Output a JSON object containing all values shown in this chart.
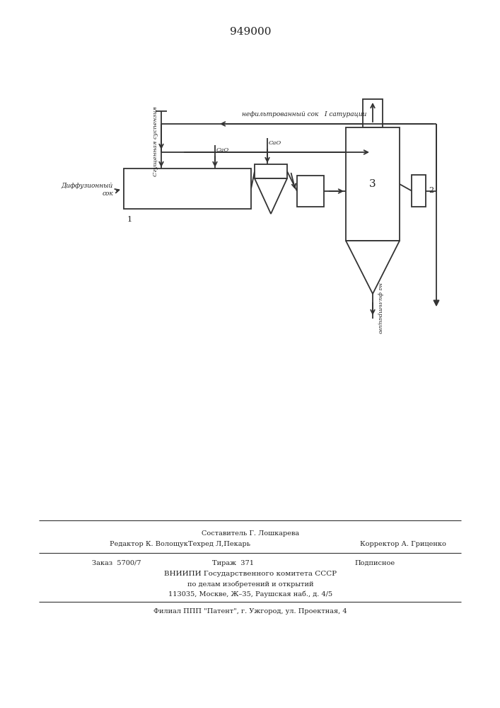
{
  "title": "949000",
  "background_color": "#ffffff",
  "line_color": "#333333",
  "text_color": "#222222",
  "figsize": [
    7.07,
    10.0
  ],
  "dpi": 100,
  "label_diffusion": "Диффузионный\nсок",
  "label_suspension": "Сгущенная суспензия",
  "label_nefiltrovanny": "нефильтрованный сок   I сатурации",
  "label_na_filtratsiyu": "на фильтрацию",
  "label_cao1": "CaO",
  "label_cao2": "CaO",
  "label_num1": "1",
  "label_num2": "2",
  "label_num3": "3",
  "footer_sestavitel": "Составитель Г. Лошкарева",
  "footer_redaktor": "Редактор К. Волощук",
  "footer_tekhred": "Техред Л,Пекарь",
  "footer_korrektor": "Корректор А. Гриценко",
  "footer_zakaz": "Заказ  5700/7",
  "footer_tirazh": "Тираж  371",
  "footer_podpisnoe": "Подписное",
  "footer_vniipи": "ВНИИПИ Государственного комитета СССР",
  "footer_po_delam": "по делам изобретений и открытий",
  "footer_address": "113035, Москве, Ж–35, Раушская наб., д. 4/5",
  "footer_filial": "Филиал ППП \"Патент\", г. Ужгород, ул. Проектная, 4"
}
